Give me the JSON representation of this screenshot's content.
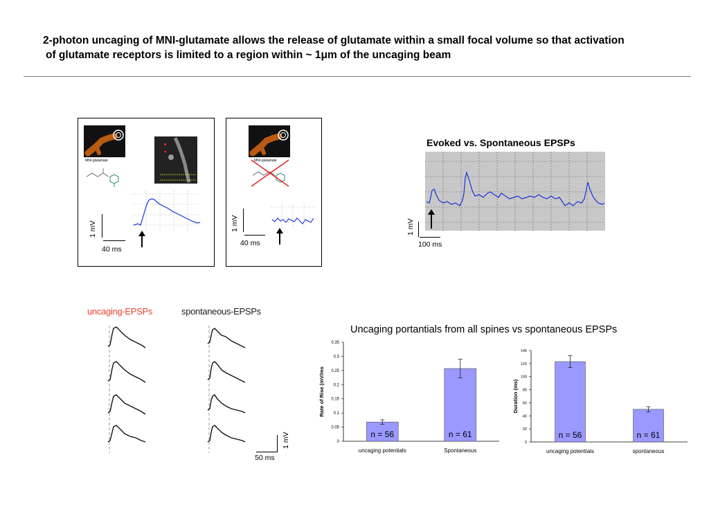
{
  "header": {
    "title_line1": "2-photon uncaging of MNI-glutamate allows the release of glutamate within a small focal volume so that activation",
    "title_line2": "of glutamate receptors is limited to a region within ~ 1μm of the uncaging beam"
  },
  "panel_left": {
    "molecule_label": "MNI-glutamate",
    "scale_v": "1 mV",
    "scale_t": "40 ms"
  },
  "panel_mid": {
    "molecule_label": "MNI-glutamate",
    "scale_v": "1 mV",
    "scale_t": "40 ms"
  },
  "evoked": {
    "title": "Evoked vs. Spontaneous EPSPs",
    "scale_v": "1 mV",
    "scale_t": "100 ms"
  },
  "epsp_traces": {
    "uncaging_label": "uncaging-EPSPs",
    "spontaneous_label": "spontaneous-EPSPs",
    "scale_v": "1 mV",
    "scale_t": "50 ms"
  },
  "colors": {
    "trace_blue": "#1a2fd8",
    "bar_fill": "#9999ff",
    "uncaging_red": "#e8432a"
  },
  "charts_title": "Uncaging portantials from all spines vs spontaneous EPSPs",
  "chart_data": [
    {
      "type": "bar",
      "categories": [
        "uncaging potentials",
        "Spontaneous"
      ],
      "values": [
        0.068,
        0.257
      ],
      "errors": [
        0.008,
        0.033
      ],
      "annotations": [
        "n = 56",
        "n = 61"
      ],
      "ylabel": "Rate of Rise (mV/ms",
      "ylim": [
        0,
        0.35
      ],
      "yticks": [
        "0",
        "0.05",
        "0.1",
        "0.15",
        "0.2",
        "0.25",
        "0.3",
        "0.35"
      ]
    },
    {
      "type": "bar",
      "categories": [
        "uncaging potentials",
        "spontaneous"
      ],
      "values": [
        123,
        50
      ],
      "errors": [
        9,
        4
      ],
      "annotations": [
        "n = 56",
        "n = 61"
      ],
      "ylabel": "Duration (ms)",
      "ylim": [
        0,
        140
      ],
      "yticks": [
        "0",
        "20",
        "40",
        "60",
        "80",
        "100",
        "120",
        "140"
      ]
    }
  ]
}
